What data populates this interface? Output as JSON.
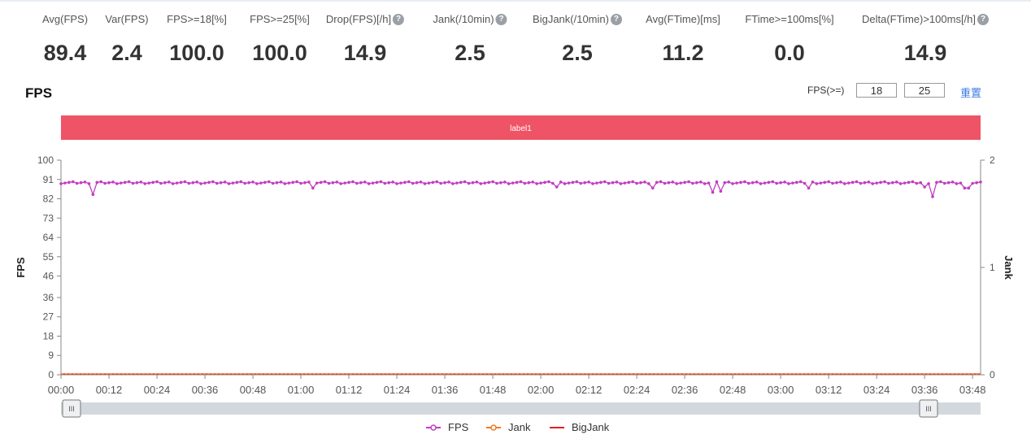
{
  "metrics": [
    {
      "label": "Avg(FPS)",
      "value": "89.4",
      "help": false
    },
    {
      "label": "Var(FPS)",
      "value": "2.4",
      "help": false
    },
    {
      "label": "FPS>=18[%]",
      "value": "100.0",
      "help": false
    },
    {
      "label": "FPS>=25[%]",
      "value": "100.0",
      "help": false
    },
    {
      "label": "Drop(FPS)[/h]",
      "value": "14.9",
      "help": true
    },
    {
      "label": "Jank(/10min)",
      "value": "2.5",
      "help": true
    },
    {
      "label": "BigJank(/10min)",
      "value": "2.5",
      "help": true
    },
    {
      "label": "Avg(FTime)[ms]",
      "value": "11.2",
      "help": false
    },
    {
      "label": "FTime>=100ms[%]",
      "value": "0.0",
      "help": false
    },
    {
      "label": "Delta(FTime)>100ms[/h]",
      "value": "14.9",
      "help": true
    }
  ],
  "help_glyph": "?",
  "chart_title": "FPS",
  "fps_threshold": {
    "label": "FPS(>=)",
    "low": "18",
    "high": "25",
    "reset": "重置"
  },
  "chart_data": {
    "type": "line",
    "band_label": "label1",
    "band_color": "#ee5466",
    "y_left": {
      "label": "FPS",
      "ylim": [
        0,
        100
      ],
      "ticks": [
        "0",
        "9",
        "18",
        "27",
        "36",
        "46",
        "55",
        "64",
        "73",
        "82",
        "91",
        "100"
      ]
    },
    "y_right": {
      "label": "Jank",
      "ylim": [
        0,
        2
      ],
      "ticks": [
        "0",
        "1",
        "2"
      ]
    },
    "x_ticks": [
      "00:00",
      "00:12",
      "00:24",
      "00:36",
      "00:48",
      "01:00",
      "01:12",
      "01:24",
      "01:36",
      "01:48",
      "02:00",
      "02:12",
      "02:24",
      "02:36",
      "02:48",
      "03:00",
      "03:12",
      "03:24",
      "03:36",
      "03:48"
    ],
    "x_range_seconds": [
      0,
      230
    ],
    "fps_dips": [
      {
        "t": 8,
        "v": 84
      },
      {
        "t": 63,
        "v": 87
      },
      {
        "t": 124,
        "v": 87.5
      },
      {
        "t": 148,
        "v": 87
      },
      {
        "t": 163,
        "v": 85
      },
      {
        "t": 165,
        "v": 85.5
      },
      {
        "t": 187,
        "v": 87
      },
      {
        "t": 216,
        "v": 87.5
      },
      {
        "t": 218,
        "v": 83
      },
      {
        "t": 226,
        "v": 87
      },
      {
        "t": 227,
        "v": 87
      }
    ],
    "fps_baseline": 89.5,
    "series": [
      {
        "name": "FPS",
        "color": "#c23dc2"
      },
      {
        "name": "Jank",
        "color": "#f07a22",
        "values_constant": 0
      },
      {
        "name": "BigJank",
        "color": "#e02020",
        "values_constant": 0
      }
    ],
    "grid": false,
    "legend_position": "bottom-center"
  },
  "slider": {
    "handle_glyph": "III"
  }
}
